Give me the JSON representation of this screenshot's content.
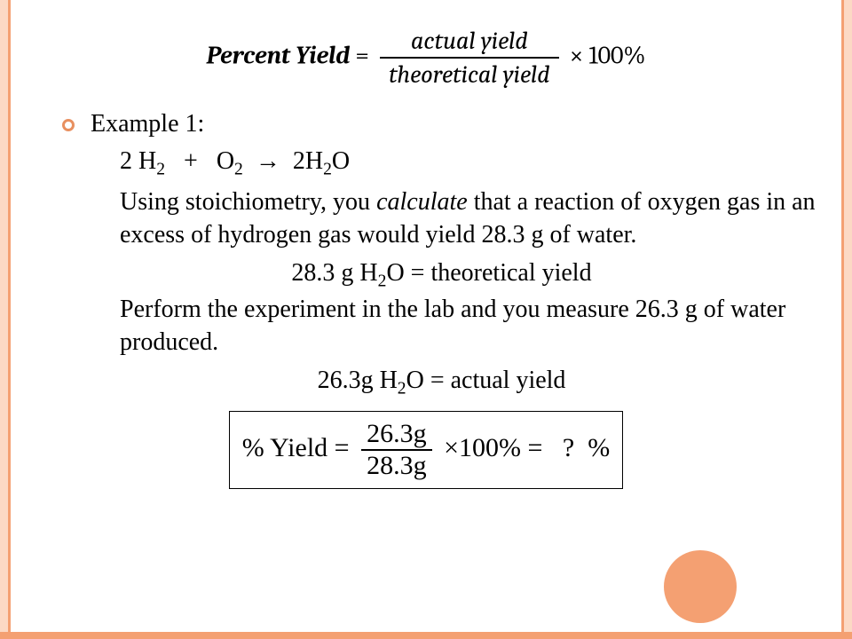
{
  "theme": {
    "accent": "#f4a072",
    "accent_light": "#fcd9c4",
    "bullet_border": "#e89060",
    "circle_fill": "#f4a072"
  },
  "formula": {
    "lhs": "Percent Yield",
    "eq": "=",
    "numerator": "actual yield",
    "denominator": "theoretical yield",
    "times": "× 100%"
  },
  "example": {
    "heading": "Example 1:",
    "equation_parts": {
      "p1": "2 H",
      "s1": "2",
      "p2": "   +   O",
      "s2": "2",
      "arrow": "  →  2H",
      "s3": "2",
      "p3": "O"
    },
    "para1_a": "Using stoichiometry, you ",
    "para1_italic": "calculate",
    "para1_b": " that a reaction of oxygen gas in an excess of hydrogen gas would yield 28.3 g of water.",
    "theoretical_line_a": "28.3 g H",
    "theoretical_sub": "2",
    "theoretical_line_b": "O = theoretical yield",
    "para2": "Perform the experiment in the lab and you measure 26.3 g of water produced.",
    "actual_line_a": "26.3g H",
    "actual_sub": "2",
    "actual_line_b": "O = actual yield",
    "box": {
      "lhs": "% Yield =",
      "num": "26.3g",
      "den": "28.3g",
      "mid": "×100% =",
      "rhs": "  ?  %"
    }
  }
}
